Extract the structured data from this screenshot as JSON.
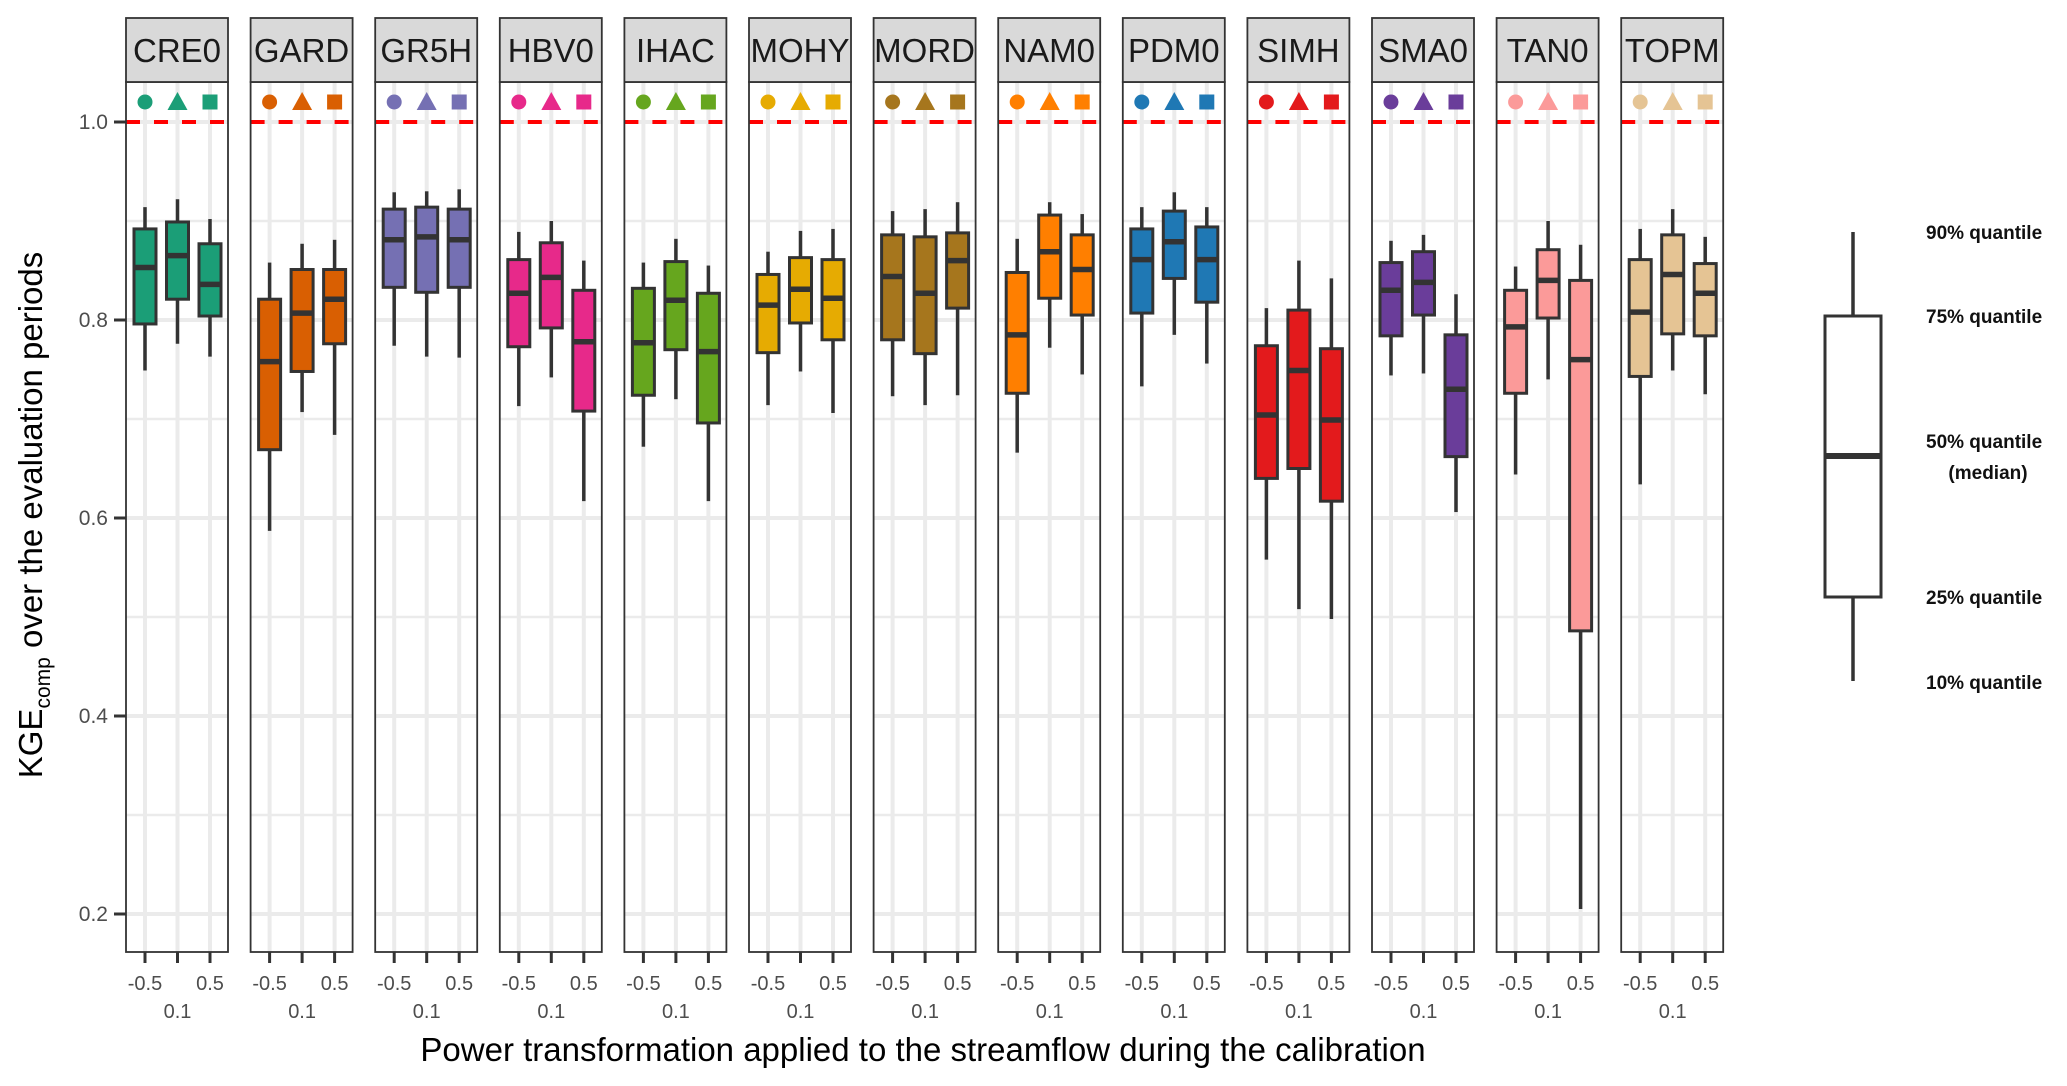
{
  "chart_data": {
    "type": "boxplot",
    "title": "",
    "ylabel_main": "KGE",
    "ylabel_sub": "comp",
    "ylabel_rest": " over the evaluation periods",
    "xlabel": "Power transformation applied to the streamflow during the calibration",
    "ylim": [
      0.16,
      1.04
    ],
    "yticks": [
      0.2,
      0.4,
      0.6,
      0.8,
      1.0
    ],
    "ytick_labels": [
      "0.2",
      "0.4",
      "0.6",
      "0.8",
      "1.0"
    ],
    "yminor_gridlines": [
      0.3,
      0.5,
      0.7,
      0.9
    ],
    "grid": true,
    "reference_line": {
      "value": 1.0,
      "color": "#FF0000",
      "style": "dashed"
    },
    "x_categories": [
      "-0.5",
      "0.1",
      "0.5"
    ],
    "x_tick_labels_top_row": [
      "-0.5",
      "",
      "0.5"
    ],
    "x_tick_labels_bottom_row": [
      "",
      "0.1",
      ""
    ],
    "category_symbols": [
      "circle",
      "triangle",
      "square"
    ],
    "whisker_definition": "10% and 90% quantiles",
    "panels": [
      {
        "name": "CRE0",
        "color": "#1B9E77",
        "boxes": [
          {
            "p10": 0.749,
            "q1": 0.796,
            "median": 0.853,
            "q3": 0.892,
            "p90": 0.914
          },
          {
            "p10": 0.776,
            "q1": 0.821,
            "median": 0.865,
            "q3": 0.899,
            "p90": 0.922
          },
          {
            "p10": 0.763,
            "q1": 0.804,
            "median": 0.836,
            "q3": 0.877,
            "p90": 0.902
          }
        ]
      },
      {
        "name": "GARD",
        "color": "#D95F02",
        "boxes": [
          {
            "p10": 0.587,
            "q1": 0.669,
            "median": 0.758,
            "q3": 0.821,
            "p90": 0.858
          },
          {
            "p10": 0.707,
            "q1": 0.748,
            "median": 0.807,
            "q3": 0.851,
            "p90": 0.877
          },
          {
            "p10": 0.684,
            "q1": 0.776,
            "median": 0.821,
            "q3": 0.851,
            "p90": 0.881
          }
        ]
      },
      {
        "name": "GR5H",
        "color": "#7570B3",
        "boxes": [
          {
            "p10": 0.774,
            "q1": 0.833,
            "median": 0.881,
            "q3": 0.912,
            "p90": 0.929
          },
          {
            "p10": 0.763,
            "q1": 0.828,
            "median": 0.884,
            "q3": 0.914,
            "p90": 0.93
          },
          {
            "p10": 0.762,
            "q1": 0.833,
            "median": 0.881,
            "q3": 0.912,
            "p90": 0.932
          }
        ]
      },
      {
        "name": "HBV0",
        "color": "#E7298A",
        "boxes": [
          {
            "p10": 0.713,
            "q1": 0.773,
            "median": 0.827,
            "q3": 0.861,
            "p90": 0.889
          },
          {
            "p10": 0.742,
            "q1": 0.792,
            "median": 0.843,
            "q3": 0.878,
            "p90": 0.9
          },
          {
            "p10": 0.617,
            "q1": 0.708,
            "median": 0.778,
            "q3": 0.83,
            "p90": 0.86
          }
        ]
      },
      {
        "name": "IHAC",
        "color": "#66A61E",
        "boxes": [
          {
            "p10": 0.672,
            "q1": 0.724,
            "median": 0.777,
            "q3": 0.832,
            "p90": 0.858
          },
          {
            "p10": 0.72,
            "q1": 0.77,
            "median": 0.82,
            "q3": 0.859,
            "p90": 0.882
          },
          {
            "p10": 0.617,
            "q1": 0.696,
            "median": 0.768,
            "q3": 0.827,
            "p90": 0.855
          }
        ]
      },
      {
        "name": "MOHY",
        "color": "#E6AB02",
        "boxes": [
          {
            "p10": 0.714,
            "q1": 0.767,
            "median": 0.815,
            "q3": 0.846,
            "p90": 0.869
          },
          {
            "p10": 0.748,
            "q1": 0.797,
            "median": 0.831,
            "q3": 0.863,
            "p90": 0.89
          },
          {
            "p10": 0.706,
            "q1": 0.78,
            "median": 0.822,
            "q3": 0.861,
            "p90": 0.892
          }
        ]
      },
      {
        "name": "MORD",
        "color": "#A6761D",
        "boxes": [
          {
            "p10": 0.723,
            "q1": 0.78,
            "median": 0.844,
            "q3": 0.886,
            "p90": 0.91
          },
          {
            "p10": 0.714,
            "q1": 0.766,
            "median": 0.827,
            "q3": 0.884,
            "p90": 0.912
          },
          {
            "p10": 0.724,
            "q1": 0.812,
            "median": 0.86,
            "q3": 0.888,
            "p90": 0.919
          }
        ]
      },
      {
        "name": "NAM0",
        "color": "#FF7F00",
        "boxes": [
          {
            "p10": 0.666,
            "q1": 0.726,
            "median": 0.785,
            "q3": 0.848,
            "p90": 0.882
          },
          {
            "p10": 0.772,
            "q1": 0.822,
            "median": 0.869,
            "q3": 0.906,
            "p90": 0.919
          },
          {
            "p10": 0.745,
            "q1": 0.805,
            "median": 0.851,
            "q3": 0.886,
            "p90": 0.907
          }
        ]
      },
      {
        "name": "PDM0",
        "color": "#1F78B4",
        "boxes": [
          {
            "p10": 0.733,
            "q1": 0.807,
            "median": 0.861,
            "q3": 0.892,
            "p90": 0.914
          },
          {
            "p10": 0.785,
            "q1": 0.842,
            "median": 0.879,
            "q3": 0.91,
            "p90": 0.929
          },
          {
            "p10": 0.756,
            "q1": 0.818,
            "median": 0.861,
            "q3": 0.894,
            "p90": 0.914
          }
        ]
      },
      {
        "name": "SIMH",
        "color": "#E31A1C",
        "boxes": [
          {
            "p10": 0.558,
            "q1": 0.64,
            "median": 0.704,
            "q3": 0.774,
            "p90": 0.812
          },
          {
            "p10": 0.508,
            "q1": 0.65,
            "median": 0.749,
            "q3": 0.81,
            "p90": 0.86
          },
          {
            "p10": 0.498,
            "q1": 0.617,
            "median": 0.699,
            "q3": 0.771,
            "p90": 0.842
          }
        ]
      },
      {
        "name": "SMA0",
        "color": "#6A3D9A",
        "boxes": [
          {
            "p10": 0.744,
            "q1": 0.784,
            "median": 0.83,
            "q3": 0.858,
            "p90": 0.88
          },
          {
            "p10": 0.746,
            "q1": 0.805,
            "median": 0.838,
            "q3": 0.869,
            "p90": 0.886
          },
          {
            "p10": 0.606,
            "q1": 0.662,
            "median": 0.73,
            "q3": 0.785,
            "p90": 0.826
          }
        ]
      },
      {
        "name": "TAN0",
        "color": "#FB9A99",
        "boxes": [
          {
            "p10": 0.644,
            "q1": 0.726,
            "median": 0.793,
            "q3": 0.83,
            "p90": 0.854
          },
          {
            "p10": 0.74,
            "q1": 0.802,
            "median": 0.84,
            "q3": 0.871,
            "p90": 0.9
          },
          {
            "p10": 0.205,
            "q1": 0.486,
            "median": 0.76,
            "q3": 0.84,
            "p90": 0.876
          }
        ]
      },
      {
        "name": "TOPM",
        "color": "#E5C494",
        "boxes": [
          {
            "p10": 0.634,
            "q1": 0.743,
            "median": 0.808,
            "q3": 0.861,
            "p90": 0.892
          },
          {
            "p10": 0.749,
            "q1": 0.786,
            "median": 0.846,
            "q3": 0.886,
            "p90": 0.912
          },
          {
            "p10": 0.725,
            "q1": 0.784,
            "median": 0.827,
            "q3": 0.857,
            "p90": 0.884
          }
        ]
      }
    ],
    "legend": {
      "placement": "right",
      "labels": {
        "p90": "90% quantile",
        "q3": "75% quantile",
        "median": "50% quantile",
        "median_note": "(median)",
        "q1": "25% quantile",
        "p10": "10% quantile"
      }
    }
  }
}
